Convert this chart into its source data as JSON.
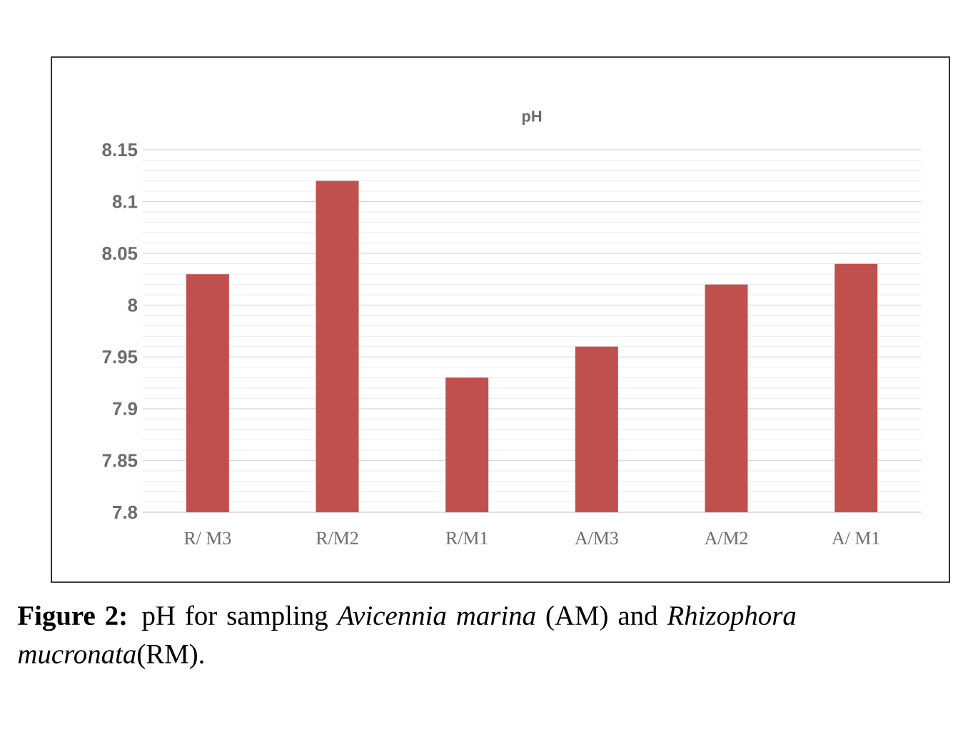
{
  "chart_data": {
    "type": "bar",
    "title": "pH",
    "categories": [
      "R/ M3",
      "R/M2",
      "R/M1",
      "A/M3",
      "A/M2",
      "A/ M1"
    ],
    "values": [
      8.03,
      8.12,
      7.93,
      7.96,
      8.02,
      8.04
    ],
    "color": "#c0504d",
    "ylim": [
      7.8,
      8.15
    ],
    "yticks": [
      7.8,
      7.85,
      7.9,
      7.95,
      8,
      8.05,
      8.1,
      8.15
    ],
    "grid": true,
    "annotations": [
      "**Figure 2:** pH for sampling *Avicennia marina* (AM) and *Rhizophora mucronata*(RM)."
    ]
  }
}
